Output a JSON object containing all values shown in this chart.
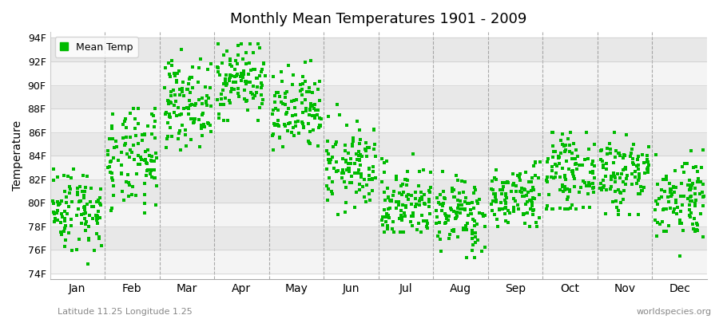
{
  "title": "Monthly Mean Temperatures 1901 - 2009",
  "ylabel": "Temperature",
  "xlabel_labels": [
    "Jan",
    "Feb",
    "Mar",
    "Apr",
    "May",
    "Jun",
    "Jul",
    "Aug",
    "Sep",
    "Oct",
    "Nov",
    "Dec"
  ],
  "ytick_labels": [
    "74F",
    "76F",
    "78F",
    "80F",
    "82F",
    "84F",
    "86F",
    "88F",
    "90F",
    "92F",
    "94F"
  ],
  "ytick_values": [
    74,
    76,
    78,
    80,
    82,
    84,
    86,
    88,
    90,
    92,
    94
  ],
  "ylim": [
    73.5,
    94.5
  ],
  "xlim": [
    0,
    12
  ],
  "point_color": "#00bb00",
  "legend_label": "Mean Temp",
  "bg_color": "#ffffff",
  "plot_bg_color": "#ffffff",
  "band_color_dark": "#e8e8e8",
  "band_color_light": "#f4f4f4",
  "vline_color": "#888888",
  "footnote_left": "Latitude 11.25 Longitude 1.25",
  "footnote_right": "worldspecies.org",
  "start_year": 1901,
  "end_year": 2009,
  "monthly_means": [
    79.5,
    83.5,
    88.5,
    90.5,
    87.5,
    83.0,
    80.0,
    79.0,
    80.5,
    82.5,
    82.5,
    80.5
  ],
  "monthly_stds": [
    1.8,
    2.2,
    1.8,
    1.6,
    1.8,
    1.8,
    1.6,
    1.6,
    1.4,
    1.6,
    1.8,
    1.8
  ],
  "monthly_mins": [
    74.5,
    76.5,
    84.5,
    87.0,
    84.0,
    79.0,
    77.5,
    75.0,
    78.0,
    79.5,
    79.0,
    75.5
  ],
  "monthly_maxs": [
    83.5,
    88.0,
    93.0,
    93.5,
    93.0,
    88.5,
    84.5,
    83.0,
    83.5,
    86.0,
    86.0,
    84.5
  ]
}
